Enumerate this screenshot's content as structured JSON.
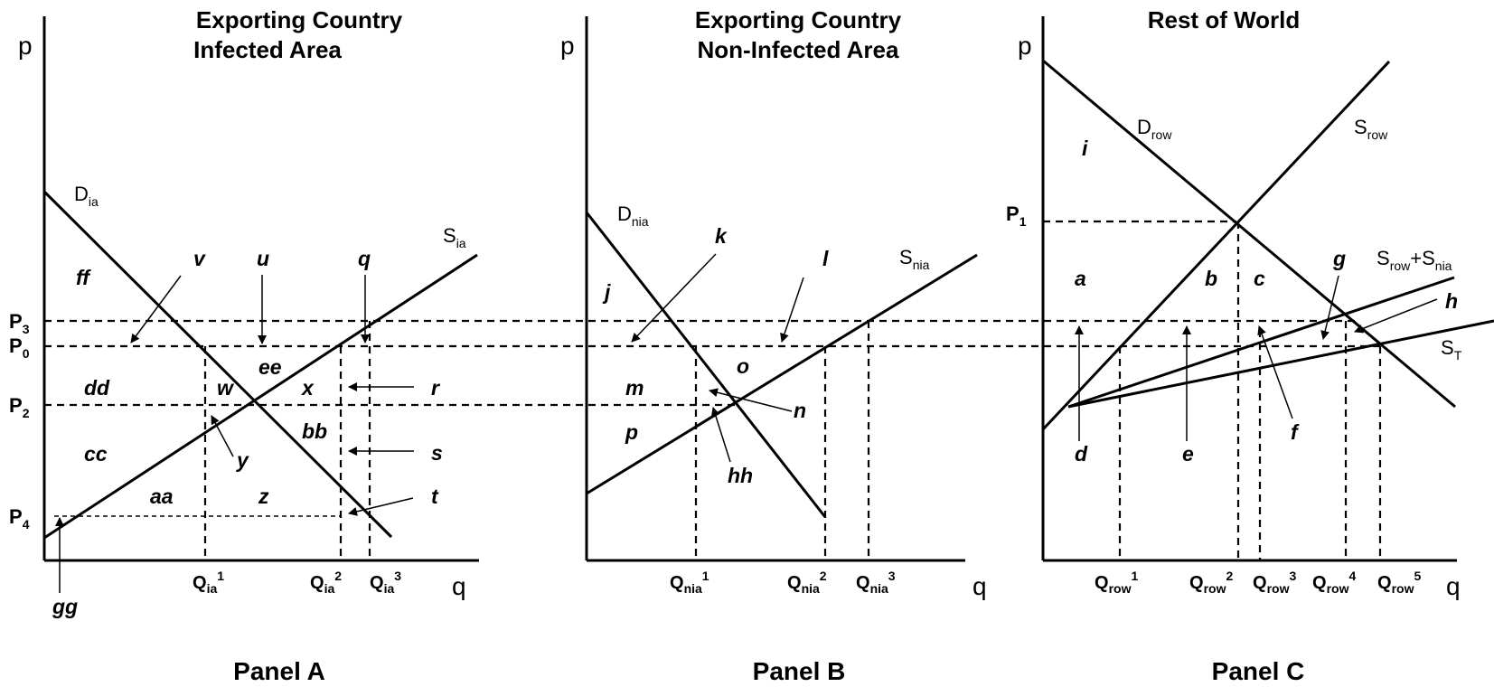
{
  "titles": {
    "a_line1": "Exporting Country",
    "a_line2": "Infected Area",
    "b_line1": "Exporting Country",
    "b_line2": "Non-Infected Area",
    "c_line1": "Rest of World"
  },
  "panels": {
    "a": "Panel A",
    "b": "Panel B",
    "c": "Panel C"
  },
  "axes": {
    "p": "p",
    "q": "q"
  },
  "prices": {
    "p3": {
      "main": "P",
      "sub": "3"
    },
    "p0": {
      "main": "P",
      "sub": "0"
    },
    "p2": {
      "main": "P",
      "sub": "2"
    },
    "p4": {
      "main": "P",
      "sub": "4"
    },
    "p1": {
      "main": "P",
      "sub": "1"
    }
  },
  "quantities": {
    "qia1": {
      "main": "Q",
      "sub": "ia",
      "sup": "1"
    },
    "qia2": {
      "main": "Q",
      "sub": "ia",
      "sup": "2"
    },
    "qia3": {
      "main": "Q",
      "sub": "ia",
      "sup": "3"
    },
    "qnia1": {
      "main": "Q",
      "sub": "nia",
      "sup": "1"
    },
    "qnia2": {
      "main": "Q",
      "sub": "nia",
      "sup": "2"
    },
    "qnia3": {
      "main": "Q",
      "sub": "nia",
      "sup": "3"
    },
    "qrow1": {
      "main": "Q",
      "sub": "row",
      "sup": "1"
    },
    "qrow2": {
      "main": "Q",
      "sub": "row",
      "sup": "2"
    },
    "qrow3": {
      "main": "Q",
      "sub": "row",
      "sup": "3"
    },
    "qrow4": {
      "main": "Q",
      "sub": "row",
      "sup": "4"
    },
    "qrow5": {
      "main": "Q",
      "sub": "row",
      "sup": "5"
    }
  },
  "curves": {
    "d_ia": {
      "main": "D",
      "sub": "ia"
    },
    "s_ia": {
      "main": "S",
      "sub": "ia"
    },
    "d_nia": {
      "main": "D",
      "sub": "nia"
    },
    "s_nia": {
      "main": "S",
      "sub": "nia"
    },
    "d_row": {
      "main": "D",
      "sub": "row"
    },
    "s_row": {
      "main": "S",
      "sub": "row"
    },
    "s_row_nia": {
      "main1": "S",
      "sub1": "row",
      "plus": "+S",
      "sub2": "nia"
    },
    "s_t": {
      "main": "S",
      "sub": "T"
    }
  },
  "regions": {
    "ff": "ff",
    "v": "v",
    "u": "u",
    "q": "q",
    "dd": "dd",
    "w": "w",
    "ee": "ee",
    "x": "x",
    "r": "r",
    "cc": "cc",
    "y": "y",
    "bb": "bb",
    "s": "s",
    "aa": "aa",
    "z": "z",
    "t": "t",
    "gg": "gg",
    "j": "j",
    "k": "k",
    "l": "l",
    "m": "m",
    "o": "o",
    "n": "n",
    "p": "p",
    "hh": "hh",
    "i": "i",
    "a": "a",
    "b": "b",
    "c": "c",
    "g": "g",
    "h": "h",
    "d": "d",
    "e": "e",
    "f": "f"
  }
}
